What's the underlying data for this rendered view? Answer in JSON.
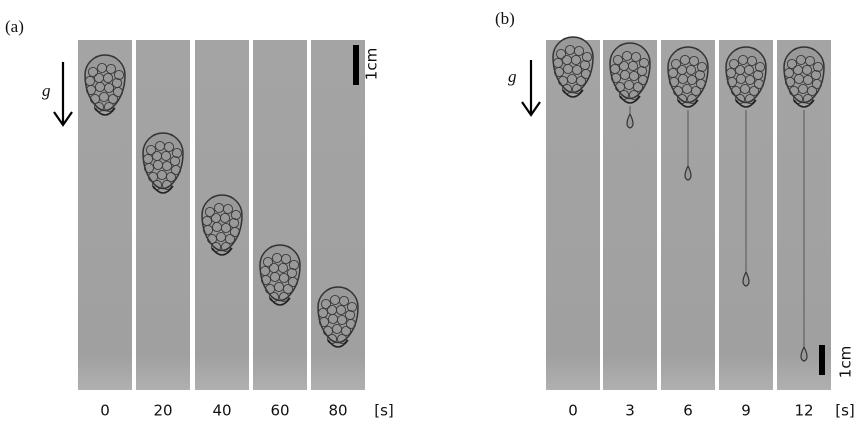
{
  "panels": [
    {
      "label": "(a)",
      "gravity": "g",
      "scale": "1cm",
      "times": [
        "0",
        "20",
        "40",
        "60",
        "80"
      ],
      "unit": "[s]"
    },
    {
      "label": "(b)",
      "gravity": "g",
      "scale": "1cm",
      "times": [
        "0",
        "3",
        "6",
        "9",
        "12"
      ],
      "unit": "[s]"
    }
  ]
}
